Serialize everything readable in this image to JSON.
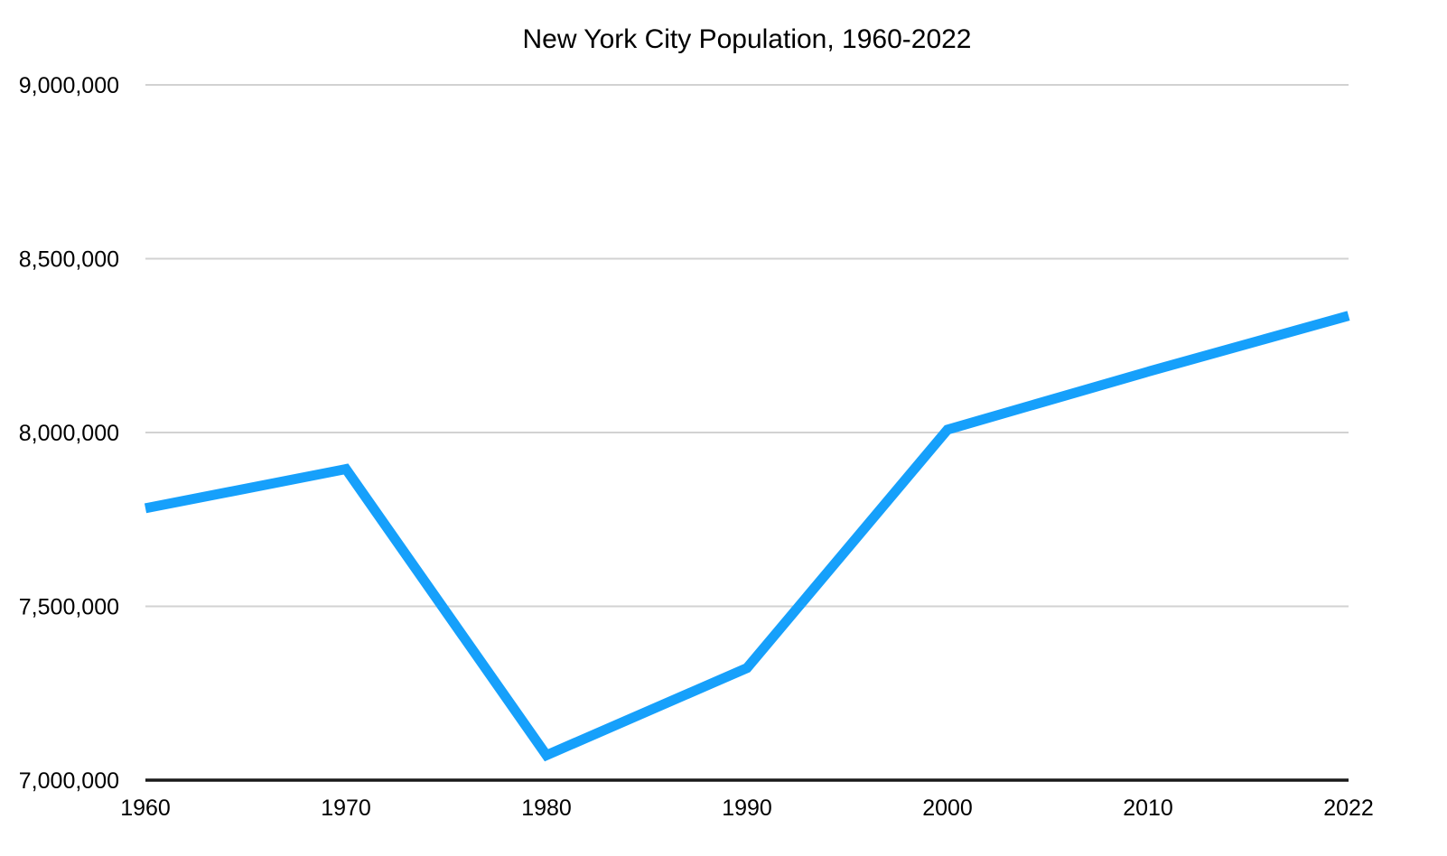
{
  "page": {
    "background": "#FFFFFF"
  },
  "chart_data": {
    "type": "line",
    "title": "New York City Population, 1960-2022",
    "categories": [
      "1960",
      "1970",
      "1980",
      "1990",
      "2000",
      "2010",
      "2022"
    ],
    "series": [
      {
        "name": "New York City population",
        "values": [
          7781984,
          7894862,
          7071639,
          7322564,
          8008278,
          8175133,
          8335897
        ],
        "color": "#16A0FB"
      }
    ],
    "xlabel": "",
    "ylabel": "",
    "ylim": [
      7000000,
      9000000
    ],
    "y_ticks": [
      7000000,
      7500000,
      8000000,
      8500000,
      9000000
    ],
    "y_tick_labels": [
      "7,000,000",
      "7,500,000",
      "8,000,000",
      "8,500,000",
      "9,000,000"
    ],
    "grid": "horizontal-only",
    "legend": "none",
    "colors": {
      "line": "#16A0FB",
      "gridline": "#D2D2D2",
      "axis": "#1A1A1A",
      "text": "#000000",
      "background": "#FFFFFF"
    },
    "line_width": 11
  }
}
